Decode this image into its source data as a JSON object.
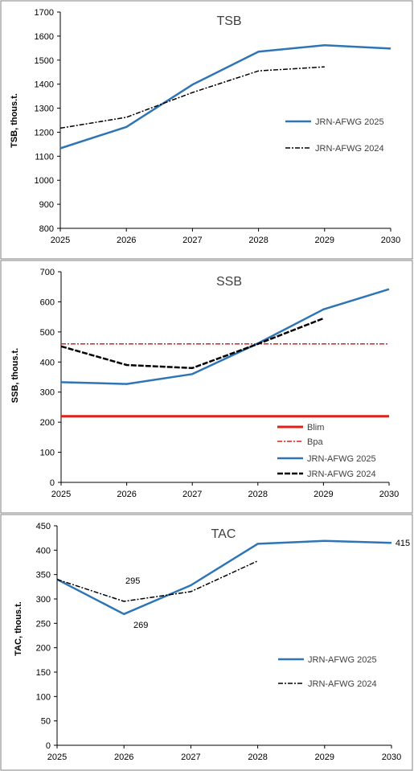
{
  "chart_data": [
    {
      "type": "line",
      "title": "TSB",
      "ylabel": "TSB, thous.t.",
      "xlabel": "",
      "x": [
        2025,
        2026,
        2027,
        2028,
        2029,
        2030
      ],
      "ylim": [
        800,
        1700
      ],
      "yticks": [
        800,
        900,
        1000,
        1100,
        1200,
        1300,
        1400,
        1500,
        1600,
        1700
      ],
      "grid": false,
      "legend": "right",
      "series": [
        {
          "name": "JRN-AFWG 2025",
          "color": "#2E75B6",
          "style": "solid",
          "width": 2.5,
          "x": [
            2025,
            2026,
            2027,
            2028,
            2029,
            2030
          ],
          "values": [
            1133,
            1222,
            1398,
            1535,
            1562,
            1548
          ]
        },
        {
          "name": "JRN-AFWG 2024",
          "color": "#000000",
          "style": "dashed",
          "width": 1.5,
          "x": [
            2025,
            2026,
            2027,
            2028,
            2029
          ],
          "values": [
            1217,
            1262,
            1365,
            1455,
            1472
          ]
        }
      ],
      "annotations": []
    },
    {
      "type": "line",
      "title": "SSB",
      "ylabel": "SSB, thous.t.",
      "xlabel": "",
      "x": [
        2025,
        2026,
        2027,
        2028,
        2029,
        2030
      ],
      "ylim": [
        0,
        700
      ],
      "yticks": [
        0,
        100,
        200,
        300,
        400,
        500,
        600,
        700
      ],
      "grid": false,
      "legend": "bottom-right",
      "series": [
        {
          "name": "Blim",
          "color": "#E0201A",
          "style": "solid",
          "width": 3,
          "x": [
            2025,
            2030
          ],
          "values": [
            220,
            220
          ]
        },
        {
          "name": "Bpa",
          "color": "#E0201A",
          "style": "dashed",
          "width": 1.5,
          "x": [
            2025,
            2030
          ],
          "values": [
            460,
            460
          ]
        },
        {
          "name": "JRN-AFWG 2025",
          "color": "#2E75B6",
          "style": "solid",
          "width": 2.5,
          "x": [
            2025,
            2026,
            2027,
            2028,
            2029,
            2030
          ],
          "values": [
            333,
            327,
            360,
            462,
            575,
            642
          ]
        },
        {
          "name": "JRN-AFWG 2024",
          "color": "#000000",
          "style": "dashed",
          "width": 2.5,
          "x": [
            2025,
            2026,
            2027,
            2028,
            2029
          ],
          "values": [
            452,
            390,
            380,
            460,
            545
          ]
        }
      ],
      "annotations": []
    },
    {
      "type": "line",
      "title": "TAC",
      "ylabel": "TAC, thous.t.",
      "xlabel": "",
      "x": [
        2025,
        2026,
        2027,
        2028,
        2029,
        2030
      ],
      "ylim": [
        0,
        450
      ],
      "yticks": [
        0,
        50,
        100,
        150,
        200,
        250,
        300,
        350,
        400,
        450
      ],
      "grid": false,
      "legend": "right",
      "series": [
        {
          "name": "JRN-AFWG 2025",
          "color": "#2E75B6",
          "style": "solid",
          "width": 2.5,
          "x": [
            2025,
            2026,
            2027,
            2028,
            2029,
            2030
          ],
          "values": [
            340,
            269,
            328,
            413,
            419,
            415
          ]
        },
        {
          "name": "JRN-AFWG 2024",
          "color": "#000000",
          "style": "dashed",
          "width": 1.5,
          "x": [
            2025,
            2026,
            2027,
            2028
          ],
          "values": [
            340,
            295,
            315,
            378
          ]
        }
      ],
      "annotations": [
        {
          "text": "295",
          "x": 2026,
          "y": 295
        },
        {
          "text": "269",
          "x": 2026,
          "y": 269
        },
        {
          "text": "415",
          "x": 2030,
          "y": 415
        }
      ]
    }
  ]
}
